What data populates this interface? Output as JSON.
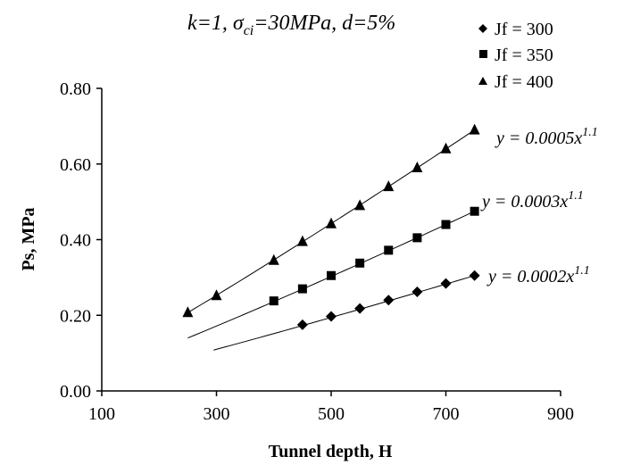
{
  "chart_data": {
    "type": "scatter",
    "title_parts": {
      "pre": "k=1, ",
      "sigma": "σ",
      "sigma_sub": "ci",
      "post": "=30MPa, d=5%"
    },
    "xlabel": "Tunnel depth, H",
    "ylabel": "Ps, MPa",
    "xlim": [
      100,
      900
    ],
    "ylim": [
      0,
      0.8
    ],
    "xticks": [
      "100",
      "300",
      "500",
      "700",
      "900"
    ],
    "yticks": [
      "0.00",
      "0.20",
      "0.40",
      "0.60",
      "0.80"
    ],
    "legend_position": "top-right",
    "grid": false,
    "series": [
      {
        "name": "Jf = 300",
        "marker": "diamond",
        "x": [
          450,
          500,
          550,
          600,
          650,
          700,
          750
        ],
        "y": [
          0.175,
          0.197,
          0.218,
          0.24,
          0.262,
          0.284,
          0.305
        ],
        "trendline": {
          "x_start": 295,
          "x_end": 750,
          "y_start": 0.108,
          "y_end": 0.305
        },
        "equation": {
          "pre": "y = 0.0002x",
          "exp": "1.1"
        }
      },
      {
        "name": "Jf = 350",
        "marker": "square",
        "x": [
          400,
          450,
          500,
          550,
          600,
          650,
          700,
          750
        ],
        "y": [
          0.238,
          0.27,
          0.305,
          0.338,
          0.372,
          0.405,
          0.44,
          0.475
        ],
        "trendline": {
          "x_start": 250,
          "x_end": 750,
          "y_start": 0.14,
          "y_end": 0.475
        },
        "equation": {
          "pre": "y = 0.0003x",
          "exp": "1.1"
        }
      },
      {
        "name": "Jf = 400",
        "marker": "triangle",
        "x": [
          250,
          300,
          400,
          450,
          500,
          550,
          600,
          650,
          700,
          750
        ],
        "y": [
          0.207,
          0.252,
          0.345,
          0.395,
          0.442,
          0.49,
          0.54,
          0.59,
          0.64,
          0.69
        ],
        "trendline": {
          "x_start": 250,
          "x_end": 750,
          "y_start": 0.207,
          "y_end": 0.69
        },
        "equation": {
          "pre": "y = 0.0005x",
          "exp": "1.1"
        }
      }
    ]
  }
}
